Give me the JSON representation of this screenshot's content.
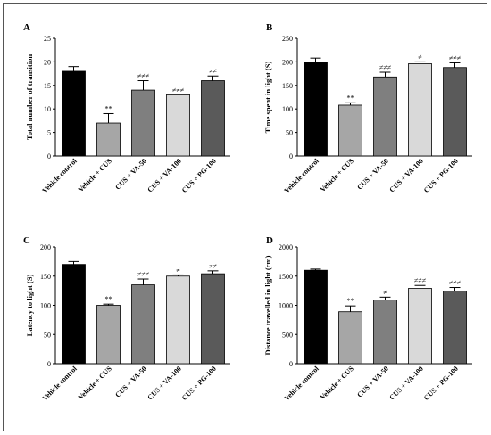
{
  "categories": [
    "Vehicle control",
    "Vehicle + CUS",
    "CUS + VA-50",
    "CUS + VA-100",
    "CUS + PG-100"
  ],
  "bar_colors": [
    "#000000",
    "#a6a6a6",
    "#7f7f7f",
    "#d9d9d9",
    "#5a5a5a"
  ],
  "chart_data": [
    {
      "type": "bar",
      "panel": "A",
      "ylabel": "Total number of transition",
      "ylim": [
        0,
        25
      ],
      "yticks": [
        0,
        5,
        10,
        15,
        20,
        25
      ],
      "categories": [
        "Vehicle control",
        "Vehicle + CUS",
        "CUS + VA-50",
        "CUS + VA-100",
        "CUS + PG-100"
      ],
      "values": [
        18,
        7,
        14,
        13,
        16
      ],
      "errors": [
        1,
        2,
        2,
        0,
        1
      ],
      "annotations": [
        "",
        "**",
        "≠≠≠",
        "≠≠≠",
        "≠≠"
      ]
    },
    {
      "type": "bar",
      "panel": "B",
      "ylabel": "Time spent in light (S)",
      "ylim": [
        0,
        250
      ],
      "yticks": [
        0,
        50,
        100,
        150,
        200,
        250
      ],
      "categories": [
        "Vehicle control",
        "Vehicle + CUS",
        "CUS + VA-50",
        "CUS + VA-100",
        "CUS + PG-100"
      ],
      "values": [
        200,
        108,
        168,
        196,
        188
      ],
      "errors": [
        8,
        5,
        10,
        4,
        10
      ],
      "annotations": [
        "",
        "**",
        "≠≠≠",
        "≠",
        "≠≠≠"
      ]
    },
    {
      "type": "bar",
      "panel": "C",
      "ylabel": "Latency to light (S)",
      "ylim": [
        0,
        200
      ],
      "yticks": [
        0,
        50,
        100,
        150,
        200
      ],
      "categories": [
        "Vehicle control",
        "Vehicle + CUS",
        "CUS + VA-50",
        "CUS + VA-100",
        "CUS + PG-100"
      ],
      "values": [
        170,
        100,
        135,
        150,
        154
      ],
      "errors": [
        5,
        2,
        10,
        2,
        5
      ],
      "annotations": [
        "",
        "**",
        "≠≠≠",
        "≠",
        "≠≠"
      ]
    },
    {
      "type": "bar",
      "panel": "D",
      "ylabel": "Distance travelled in light (cm)",
      "ylim": [
        0,
        2000
      ],
      "yticks": [
        0,
        500,
        1000,
        1500,
        2000
      ],
      "categories": [
        "Vehicle control",
        "Vehicle + CUS",
        "CUS + VA-50",
        "CUS + VA-100",
        "CUS + PG-100"
      ],
      "values": [
        1600,
        890,
        1090,
        1290,
        1245
      ],
      "errors": [
        20,
        100,
        50,
        50,
        60
      ],
      "annotations": [
        "",
        "**",
        "≠",
        "≠≠≠",
        "≠≠≠"
      ]
    }
  ]
}
